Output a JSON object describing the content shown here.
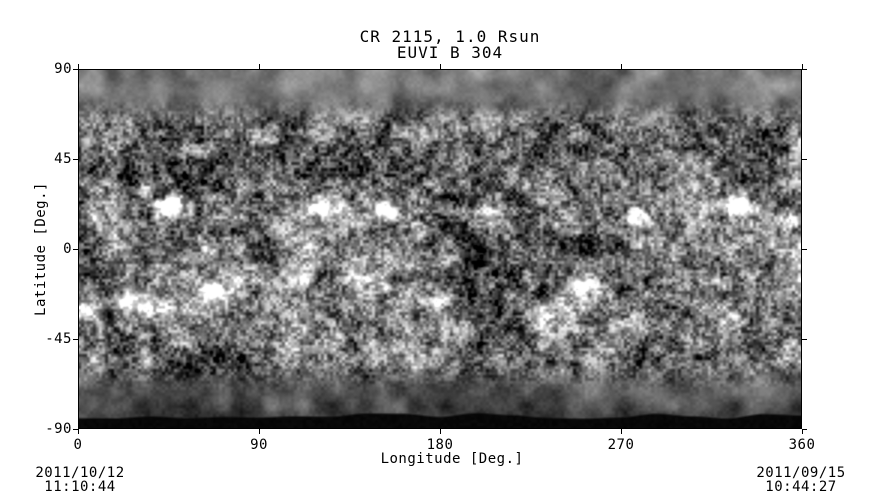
{
  "title": {
    "line1": "CR 2115, 1.0 Rsun",
    "line2": "EUVI B 304"
  },
  "axes": {
    "x": {
      "label": "Longitude [Deg.]",
      "ticks": [
        "0",
        "90",
        "180",
        "270",
        "360"
      ]
    },
    "y": {
      "label": "Latitude [Deg.]",
      "ticks": [
        "90",
        "45",
        "0",
        "-45",
        "-90"
      ]
    }
  },
  "timestamps": {
    "left": {
      "date": "2011/10/12",
      "time": "11:10:44"
    },
    "right": {
      "date": "2011/09/15",
      "time": "10:44:27"
    }
  },
  "colors": {
    "page_bg": "#ffffff",
    "text": "#000000",
    "frame": "#000000",
    "missing_data": "#050505"
  },
  "chart_data": {
    "type": "heatmap",
    "title": "CR 2115, 1.0 Rsun",
    "subtitle": "EUVI B 304",
    "xlabel": "Longitude [Deg.]",
    "ylabel": "Latitude [Deg.]",
    "xlim": [
      0,
      360
    ],
    "ylim": [
      -90,
      90
    ],
    "xticks": [
      0,
      90,
      180,
      270,
      360
    ],
    "yticks": [
      90,
      45,
      0,
      -45,
      -90
    ],
    "grid": false,
    "legend": null,
    "colormap": "grayscale",
    "annotations": [
      {
        "text": "2011/10/12 11:10:44",
        "position": "bottom-left"
      },
      {
        "text": "2011/09/15 10:44:27",
        "position": "bottom-right"
      }
    ],
    "image": {
      "description": "Grayscale EUVI-B 304A chromospheric synoptic map: fine bright/dark mottled network, bright active-region bands near +/-20-25 deg latitude, smooth gray north polar cap, darker smooth south polar cap, thin black missing-data wedge along the bottom edge",
      "region_format": "[lon_deg, lat_deg, sigma_lon_deg, sigma_lat_deg, intensity]",
      "base_mean_gray": 0.415,
      "active_region_bands_lat": [
        22,
        -26
      ],
      "band_boost": [
        0.045,
        0.04
      ],
      "north_polar_smooth_above_lat": 62,
      "south_polar_dark_below_lat": -58,
      "missing_data": {
        "below_lat": -84.6,
        "waviness_deg": 1.6
      },
      "bright_regions": [
        [
          45,
          21,
          9,
          5,
          0.72
        ],
        [
          33,
          29,
          6,
          4,
          0.3
        ],
        [
          8,
          16,
          5,
          3,
          0.25
        ],
        [
          96,
          24,
          5,
          3,
          0.22
        ],
        [
          120,
          21,
          7,
          4,
          0.45
        ],
        [
          152,
          19,
          8,
          4,
          0.48
        ],
        [
          201,
          17,
          7,
          4,
          0.38
        ],
        [
          242,
          12,
          5,
          3,
          0.22
        ],
        [
          277,
          16,
          8,
          4,
          0.5
        ],
        [
          330,
          22,
          9,
          5,
          0.62
        ],
        [
          354,
          14,
          6,
          4,
          0.42
        ],
        [
          3,
          -30,
          5,
          4,
          0.32
        ],
        [
          27,
          -27,
          9,
          5,
          0.55
        ],
        [
          41,
          -31,
          6,
          4,
          0.35
        ],
        [
          66,
          -20,
          7,
          4,
          0.42
        ],
        [
          110,
          -15,
          6,
          3,
          0.32
        ],
        [
          143,
          -15,
          8,
          3,
          0.42
        ],
        [
          153,
          -19,
          5,
          3,
          0.32
        ],
        [
          176,
          -26,
          6,
          4,
          0.38
        ],
        [
          251,
          -18,
          7,
          4,
          0.45
        ],
        [
          322,
          -16,
          6,
          3,
          0.3
        ]
      ],
      "dark_filaments": [
        [
          24,
          36,
          11,
          6,
          0.22
        ],
        [
          55,
          30,
          8,
          4,
          0.18
        ],
        [
          12,
          42,
          8,
          4,
          0.16
        ],
        [
          95,
          -2,
          10,
          4,
          0.16
        ],
        [
          70,
          8,
          12,
          4,
          0.15
        ],
        [
          120,
          40,
          14,
          4,
          0.14
        ],
        [
          160,
          42,
          16,
          5,
          0.13
        ],
        [
          230,
          4,
          12,
          5,
          0.17
        ],
        [
          196,
          -12,
          4,
          10,
          0.2
        ],
        [
          260,
          -38,
          12,
          6,
          0.14
        ],
        [
          305,
          8,
          10,
          4,
          0.15
        ],
        [
          345,
          40,
          10,
          5,
          0.13
        ],
        [
          285,
          35,
          12,
          5,
          0.13
        ],
        [
          180,
          8,
          8,
          8,
          0.12
        ]
      ],
      "polar_patches": [
        [
          335,
          82,
          22,
          5,
          0.14
        ],
        [
          120,
          83,
          26,
          5,
          0.09
        ],
        [
          20,
          80,
          14,
          5,
          0.07
        ],
        [
          195,
          83,
          16,
          4,
          -0.07
        ],
        [
          90,
          -78,
          30,
          5,
          0.05
        ],
        [
          280,
          -65,
          40,
          8,
          -0.05
        ]
      ]
    }
  }
}
